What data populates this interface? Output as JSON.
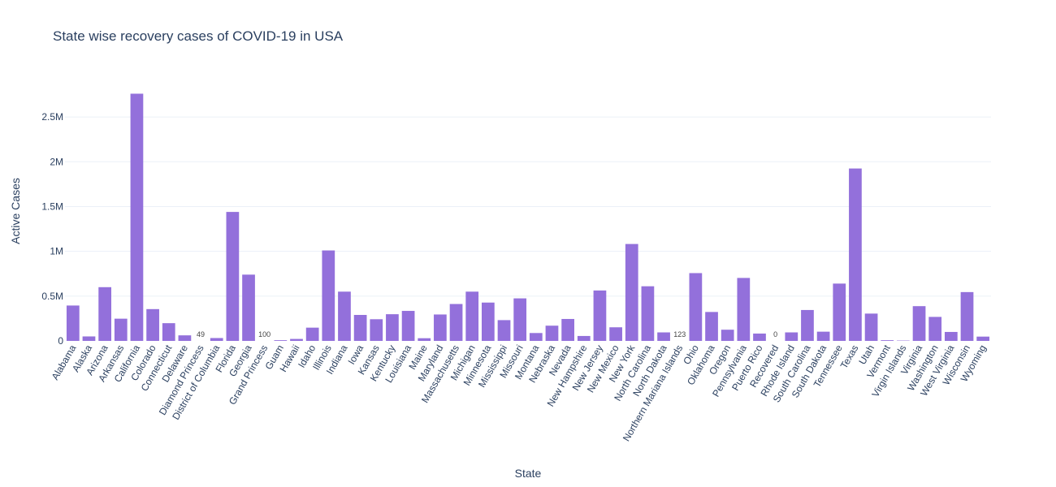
{
  "chart_data": {
    "type": "bar",
    "title": "State wise recovery cases of COVID-19 in USA",
    "xlabel": "State",
    "ylabel": "Active Cases",
    "ylim": [
      0,
      2900000
    ],
    "yticks": [
      {
        "value": 0,
        "label": "0"
      },
      {
        "value": 500000,
        "label": "0.5M"
      },
      {
        "value": 1000000,
        "label": "1M"
      },
      {
        "value": 1500000,
        "label": "1.5M"
      },
      {
        "value": 2000000,
        "label": "2M"
      },
      {
        "value": 2500000,
        "label": "2.5M"
      }
    ],
    "grid": true,
    "legend": false,
    "bar_color": "#9370db",
    "categories": [
      "Alabama",
      "Alaska",
      "Arizona",
      "Arkansas",
      "California",
      "Colorado",
      "Connecticut",
      "Delaware",
      "Diamond Princess",
      "District of Columbia",
      "Florida",
      "Georgia",
      "Grand Princess",
      "Guam",
      "Hawaii",
      "Idaho",
      "Illinois",
      "Indiana",
      "Iowa",
      "Kansas",
      "Kentucky",
      "Louisiana",
      "Maine",
      "Maryland",
      "Massachusetts",
      "Michigan",
      "Minnesota",
      "Mississippi",
      "Missouri",
      "Montana",
      "Nebraska",
      "Nevada",
      "New Hampshire",
      "New Jersey",
      "New Mexico",
      "New York",
      "North Carolina",
      "North Dakota",
      "Northern Mariana Islands",
      "Ohio",
      "Oklahoma",
      "Oregon",
      "Pennsylvania",
      "Puerto Rico",
      "Recovered",
      "Rhode Island",
      "South Carolina",
      "South Dakota",
      "Tennessee",
      "Texas",
      "Utah",
      "Vermont",
      "Virgin Islands",
      "Virginia",
      "Washington",
      "West Virginia",
      "Wisconsin",
      "Wyoming"
    ],
    "values": [
      395000,
      50000,
      600000,
      248000,
      2760000,
      355000,
      198000,
      62000,
      49,
      32000,
      1440000,
      740000,
      100,
      8000,
      22000,
      148000,
      1010000,
      550000,
      290000,
      242000,
      298000,
      335000,
      30000,
      295000,
      412000,
      550000,
      428000,
      232000,
      475000,
      88000,
      170000,
      245000,
      55000,
      563000,
      152000,
      1082000,
      610000,
      95000,
      123,
      757000,
      323000,
      125000,
      703000,
      82000,
      0,
      95000,
      345000,
      103000,
      640000,
      1925000,
      305000,
      8000,
      4000,
      388000,
      268000,
      100000,
      545000,
      48000
    ],
    "data_labels": [
      {
        "category": "Diamond Princess",
        "text": "49"
      },
      {
        "category": "Grand Princess",
        "text": "100"
      },
      {
        "category": "Northern Mariana Islands",
        "text": "123"
      },
      {
        "category": "Recovered",
        "text": "0"
      }
    ]
  }
}
